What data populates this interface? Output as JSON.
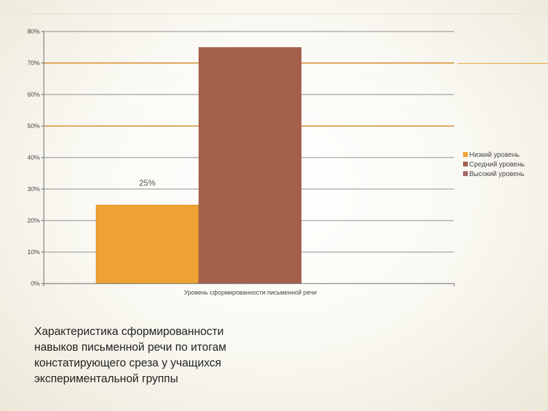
{
  "caption": "Характеристика сформированности\nнавыков письменной речи по итогам\nконстатирующего среза у учащихся\nэкспериментальной группы",
  "chart_data": {
    "type": "bar",
    "categories": [
      "Уровень сформированности письменной речи"
    ],
    "series": [
      {
        "name": "Низкий уровень",
        "values": [
          25
        ],
        "color": "#eda233",
        "data_label": "25%"
      },
      {
        "name": "Средний уровень",
        "values": [
          75
        ],
        "color": "#a5604b",
        "data_label": ""
      },
      {
        "name": "Высокий уровень",
        "values": [
          0
        ],
        "color": "#a8686a",
        "data_label": ""
      }
    ],
    "y_ticks": [
      "0%",
      "10%",
      "20%",
      "30%",
      "40%",
      "50%",
      "60%",
      "70%",
      "80%"
    ],
    "ylim": [
      0,
      80
    ],
    "grid": true,
    "highlight_gridlines": [
      50,
      70
    ],
    "highlight_color": "#d4892a",
    "legend_position": "right"
  }
}
